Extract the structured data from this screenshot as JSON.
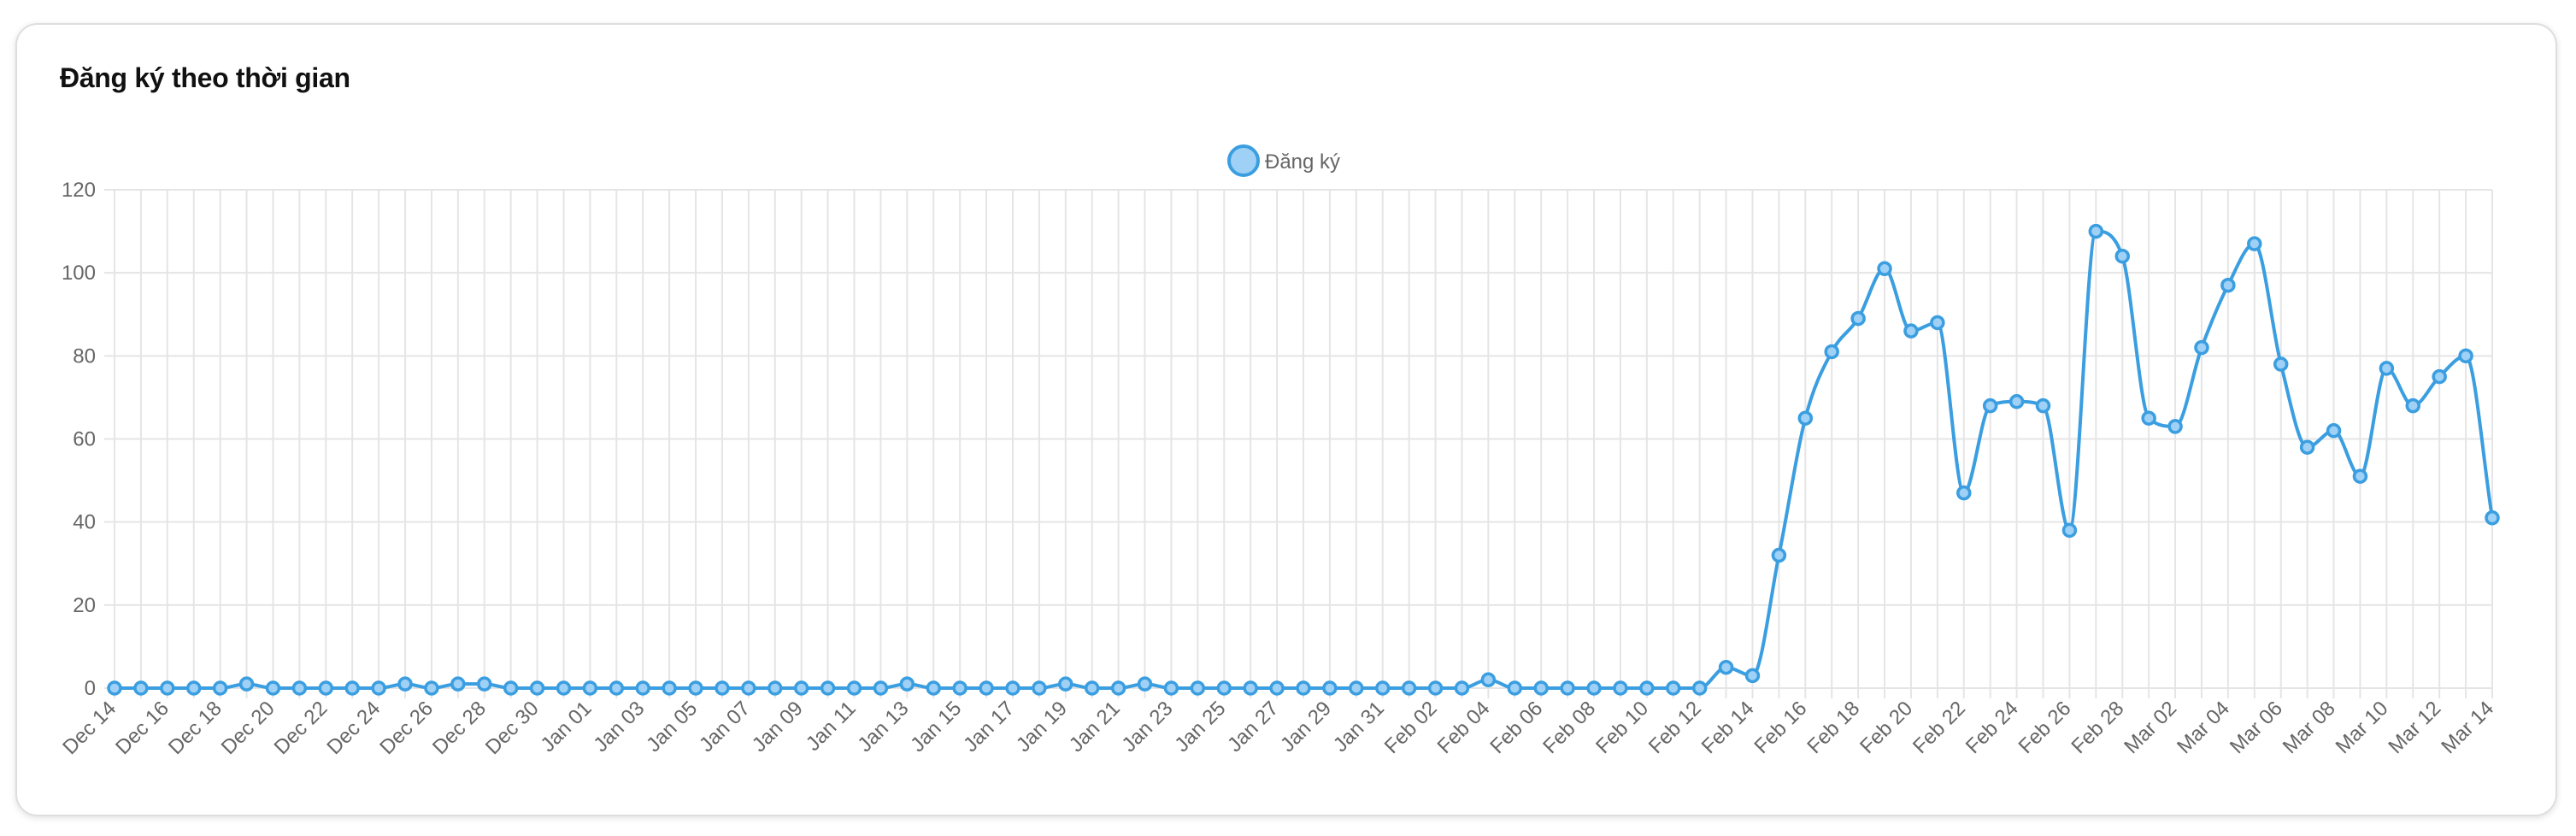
{
  "card": {
    "title": "Đăng ký theo thời gian"
  },
  "colors": {
    "line": "#3a9ee0",
    "point_fill": "#9fd0f5",
    "grid": "#e5e5e5",
    "tick_text": "#666666"
  },
  "chart_data": {
    "type": "line",
    "title": "",
    "xlabel": "",
    "ylabel": "",
    "ylim": [
      0,
      120
    ],
    "yticks": [
      0,
      20,
      40,
      60,
      80,
      100,
      120
    ],
    "grid": true,
    "legend_position": "top-center",
    "x": [
      "Dec 14",
      "Dec 15",
      "Dec 16",
      "Dec 17",
      "Dec 18",
      "Dec 19",
      "Dec 20",
      "Dec 21",
      "Dec 22",
      "Dec 23",
      "Dec 24",
      "Dec 25",
      "Dec 26",
      "Dec 27",
      "Dec 28",
      "Dec 29",
      "Dec 30",
      "Dec 31",
      "Jan 01",
      "Jan 02",
      "Jan 03",
      "Jan 04",
      "Jan 05",
      "Jan 06",
      "Jan 07",
      "Jan 08",
      "Jan 09",
      "Jan 10",
      "Jan 11",
      "Jan 12",
      "Jan 13",
      "Jan 14",
      "Jan 15",
      "Jan 16",
      "Jan 17",
      "Jan 18",
      "Jan 19",
      "Jan 20",
      "Jan 21",
      "Jan 22",
      "Jan 23",
      "Jan 24",
      "Jan 25",
      "Jan 26",
      "Jan 27",
      "Jan 28",
      "Jan 29",
      "Jan 30",
      "Jan 31",
      "Feb 01",
      "Feb 02",
      "Feb 03",
      "Feb 04",
      "Feb 05",
      "Feb 06",
      "Feb 07",
      "Feb 08",
      "Feb 09",
      "Feb 10",
      "Feb 11",
      "Feb 12",
      "Feb 13",
      "Feb 14",
      "Feb 15",
      "Feb 16",
      "Feb 17",
      "Feb 18",
      "Feb 19",
      "Feb 20",
      "Feb 21",
      "Feb 22",
      "Feb 23",
      "Feb 24",
      "Feb 25",
      "Feb 26",
      "Feb 27",
      "Feb 28",
      "Mar 01",
      "Mar 02",
      "Mar 03",
      "Mar 04",
      "Mar 05",
      "Mar 06",
      "Mar 07",
      "Mar 08",
      "Mar 09",
      "Mar 10",
      "Mar 11",
      "Mar 12",
      "Mar 13",
      "Mar 14"
    ],
    "xtick_labels": [
      "Dec 14",
      "Dec 16",
      "Dec 18",
      "Dec 20",
      "Dec 22",
      "Dec 24",
      "Dec 26",
      "Dec 28",
      "Dec 30",
      "Jan 01",
      "Jan 03",
      "Jan 05",
      "Jan 07",
      "Jan 09",
      "Jan 11",
      "Jan 13",
      "Jan 15",
      "Jan 17",
      "Jan 19",
      "Jan 21",
      "Jan 23",
      "Jan 25",
      "Jan 27",
      "Jan 29",
      "Jan 31",
      "Feb 02",
      "Feb 04",
      "Feb 06",
      "Feb 08",
      "Feb 10",
      "Feb 12",
      "Feb 14",
      "Feb 16",
      "Feb 18",
      "Feb 20",
      "Feb 22",
      "Feb 24",
      "Feb 26",
      "Feb 28",
      "Mar 02",
      "Mar 04",
      "Mar 06",
      "Mar 08",
      "Mar 10",
      "Mar 12",
      "Mar 14"
    ],
    "series": [
      {
        "name": "Đăng ký",
        "values": [
          0,
          0,
          0,
          0,
          0,
          1,
          0,
          0,
          0,
          0,
          0,
          1,
          0,
          1,
          1,
          0,
          0,
          0,
          0,
          0,
          0,
          0,
          0,
          0,
          0,
          0,
          0,
          0,
          0,
          0,
          1,
          0,
          0,
          0,
          0,
          0,
          1,
          0,
          0,
          1,
          0,
          0,
          0,
          0,
          0,
          0,
          0,
          0,
          0,
          0,
          0,
          0,
          2,
          0,
          0,
          0,
          0,
          0,
          0,
          0,
          0,
          5,
          3,
          32,
          65,
          81,
          89,
          101,
          86,
          88,
          47,
          68,
          69,
          68,
          38,
          110,
          104,
          65,
          63,
          82,
          97,
          107,
          78,
          58,
          62,
          51,
          77,
          68,
          75,
          80,
          41
        ]
      }
    ]
  }
}
